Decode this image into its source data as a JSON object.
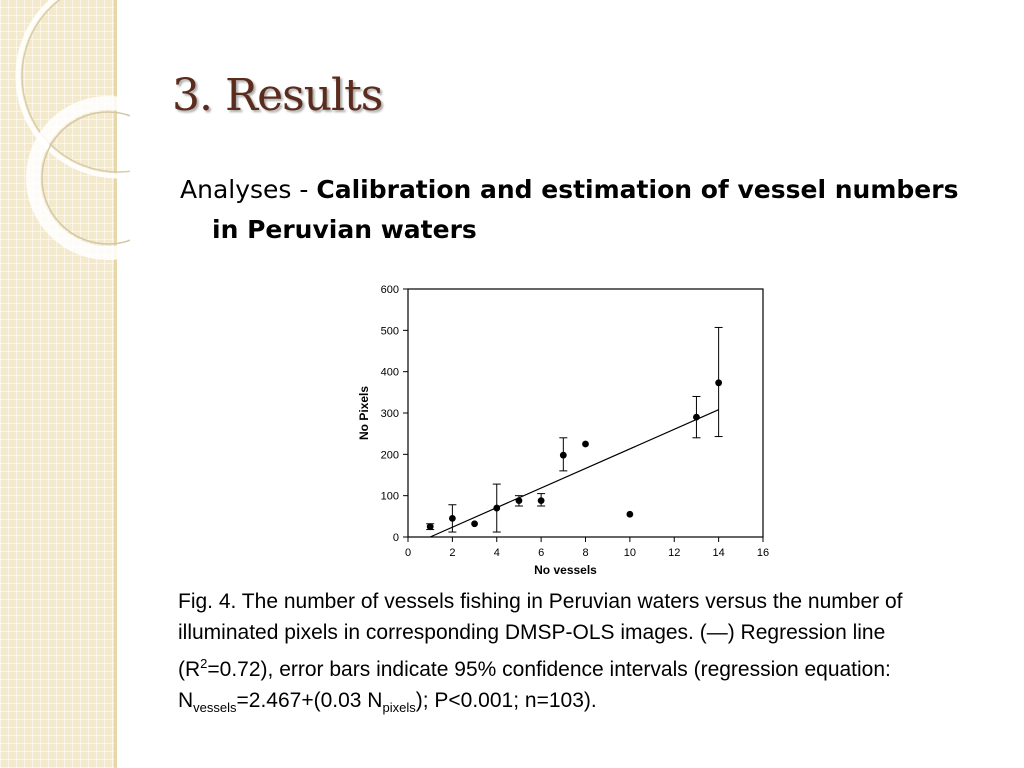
{
  "slide": {
    "title": "3. Results",
    "subtitle_prefix": "Analyses - ",
    "subtitle_bold": "Calibration and estimation of vessel numbers in Peruvian waters"
  },
  "caption": {
    "line1": "Fig. 4. The number of vessels fishing in Peruvian waters versus the number of illuminated pixels in corresponding DMSP-OLS images. (—) Regression line (R",
    "r2_sup": "2",
    "line2": "=0.72), error bars indicate 95% confidence intervals (regression equation: N",
    "sub_vessels": "vessels",
    "line3": "=2.467+(0.03    N",
    "sub_pixels": "pixels",
    "line4": "); P<0.001; n=103)."
  },
  "chart_data": {
    "type": "scatter",
    "xlabel": "No vessels",
    "ylabel": "No Pixels",
    "xlim": [
      0,
      16
    ],
    "ylim": [
      0,
      600
    ],
    "xticks": [
      0,
      2,
      4,
      6,
      8,
      10,
      12,
      14,
      16
    ],
    "yticks": [
      0,
      100,
      200,
      300,
      400,
      500,
      600
    ],
    "grid": false,
    "points": [
      {
        "x": 1,
        "y": 25,
        "lo": 18,
        "hi": 32
      },
      {
        "x": 2,
        "y": 45,
        "lo": 12,
        "hi": 78
      },
      {
        "x": 3,
        "y": 32,
        "lo": null,
        "hi": null
      },
      {
        "x": 4,
        "y": 70,
        "lo": 12,
        "hi": 128
      },
      {
        "x": 5,
        "y": 88,
        "lo": 75,
        "hi": 100
      },
      {
        "x": 6,
        "y": 88,
        "lo": 75,
        "hi": 105
      },
      {
        "x": 7,
        "y": 198,
        "lo": 160,
        "hi": 240
      },
      {
        "x": 8,
        "y": 225,
        "lo": null,
        "hi": null
      },
      {
        "x": 10,
        "y": 55,
        "lo": null,
        "hi": null
      },
      {
        "x": 13,
        "y": 290,
        "lo": 240,
        "hi": 340
      },
      {
        "x": 14,
        "y": 373,
        "lo": 243,
        "hi": 507
      }
    ],
    "regression_line": {
      "x": [
        1,
        14
      ],
      "y": [
        0,
        308
      ]
    }
  }
}
